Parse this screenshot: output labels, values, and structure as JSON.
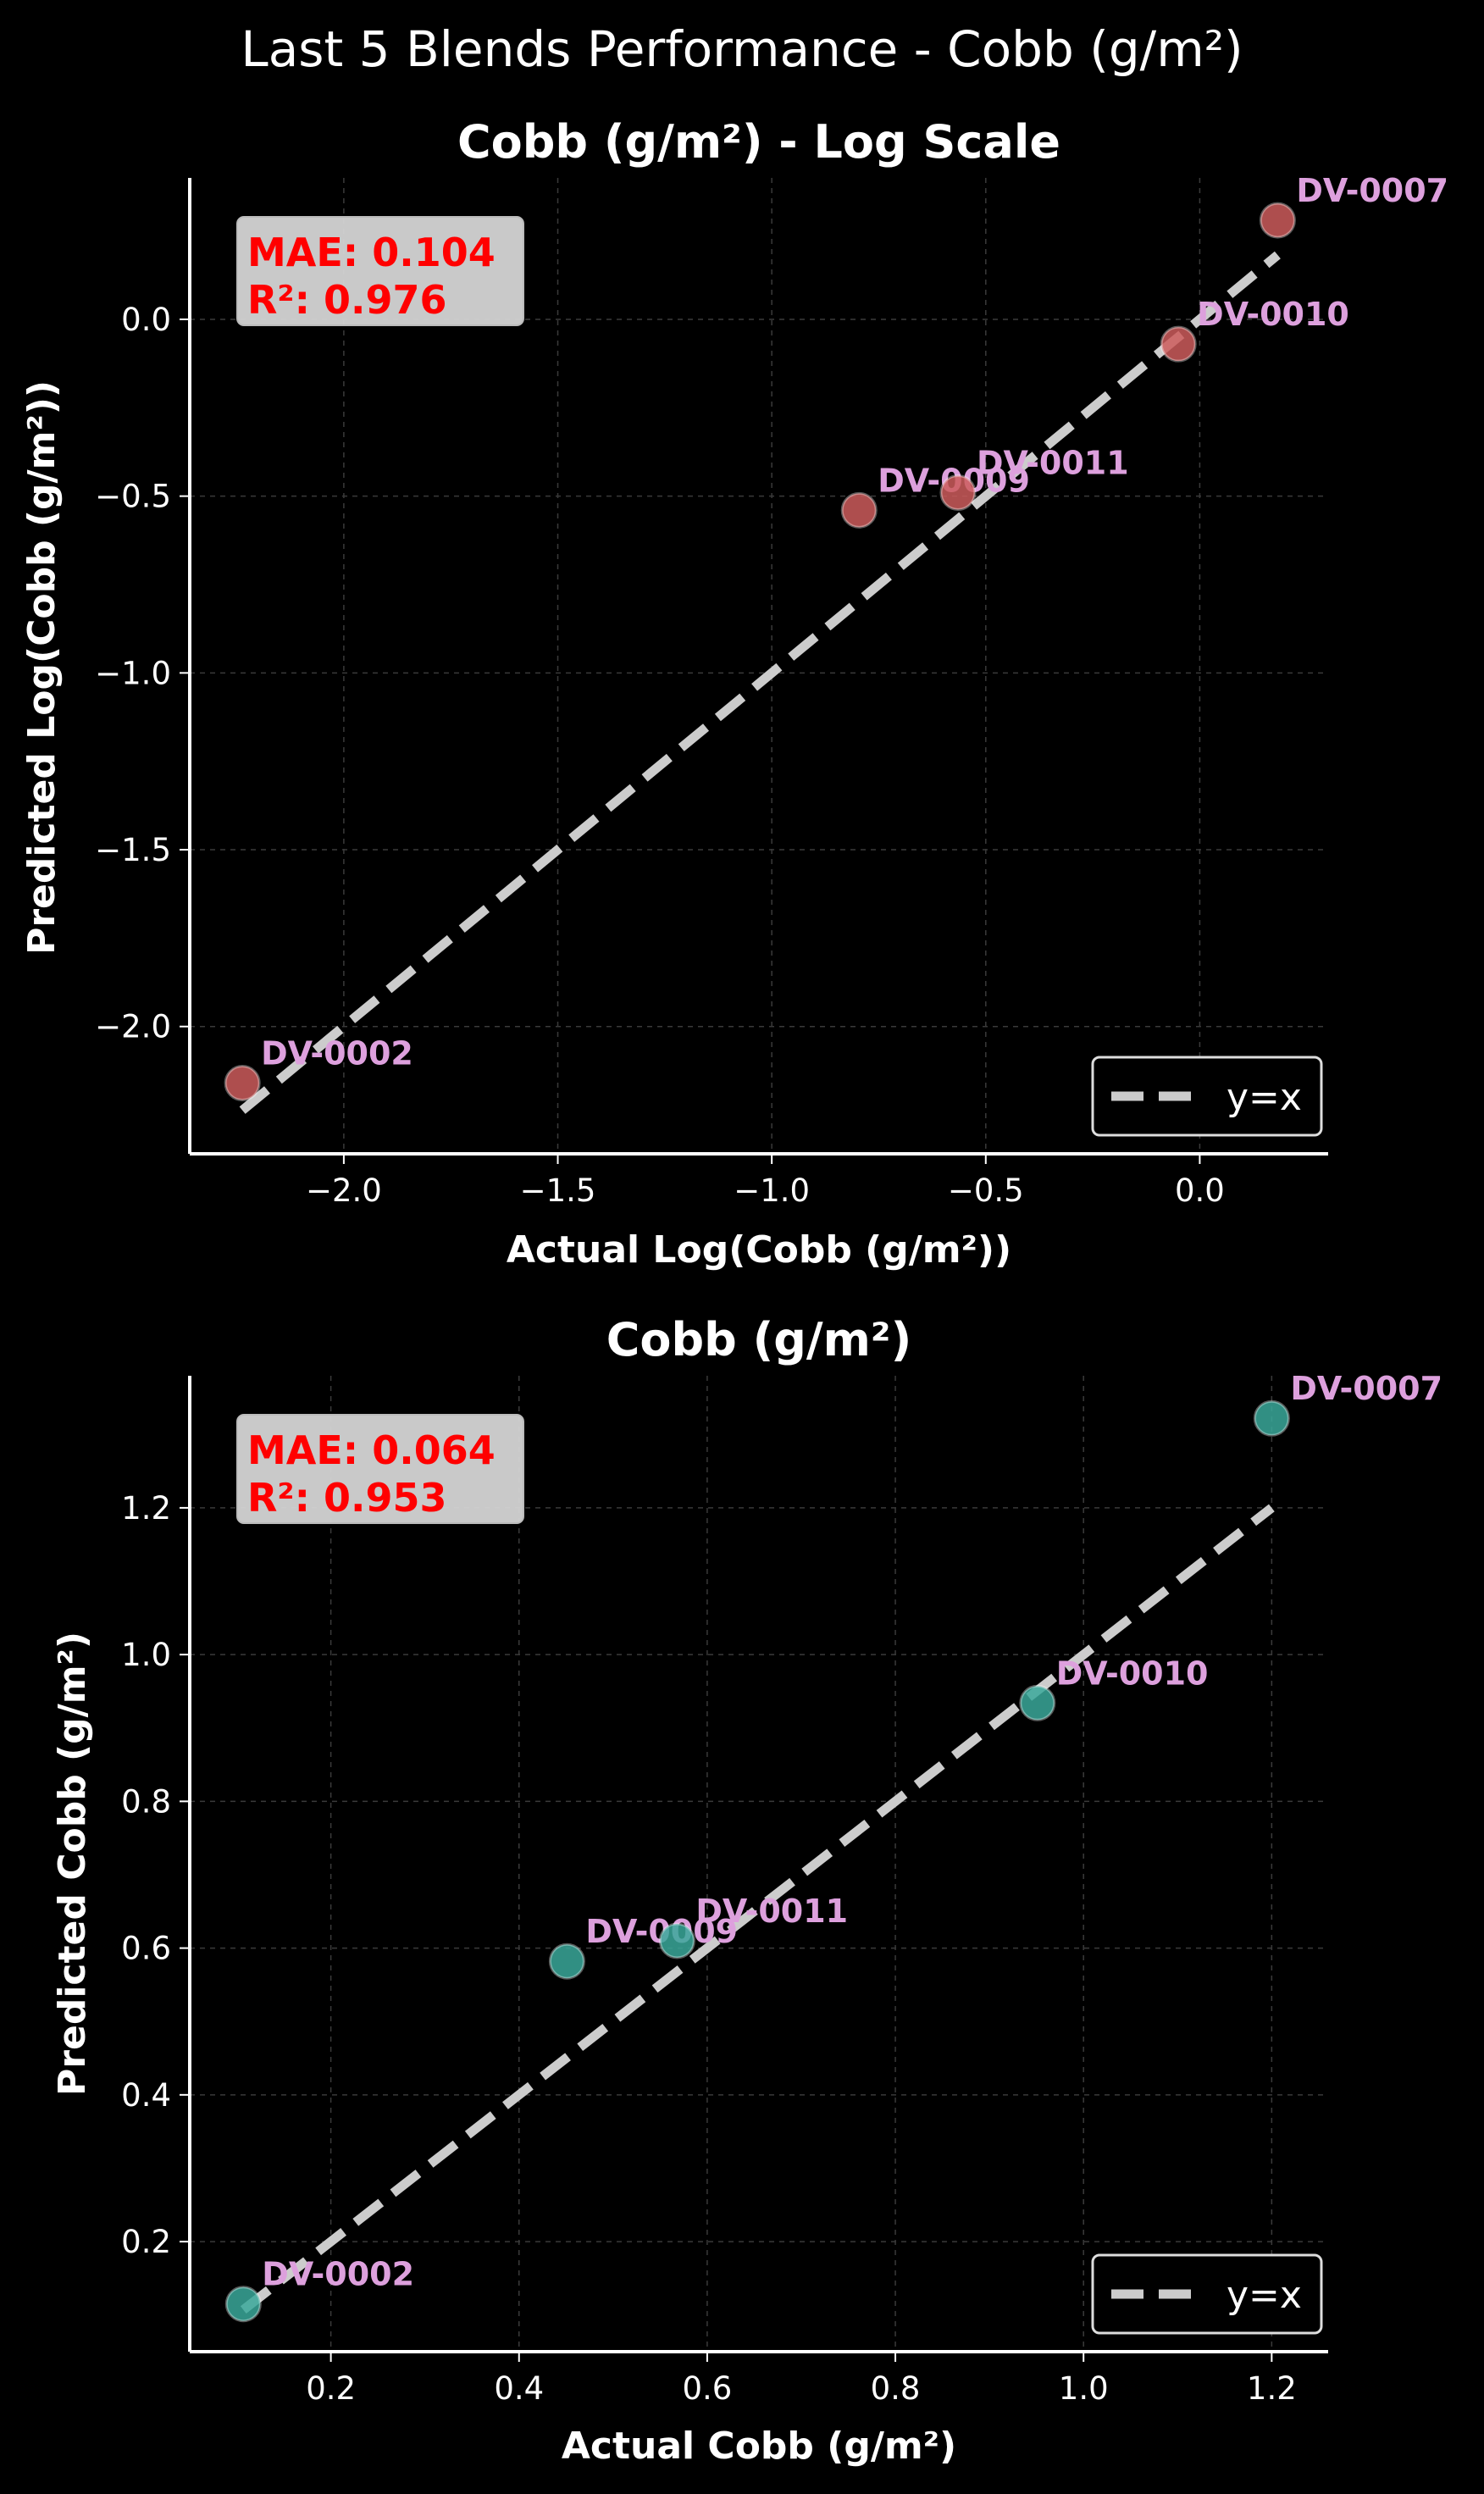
{
  "figure": {
    "title": "Last 5 Blends Performance - Cobb (g/m²)"
  },
  "chart_data": [
    {
      "type": "scatter",
      "title": "Cobb (g/m²) - Log Scale",
      "xlabel": "Actual Log(Cobb (g/m²))",
      "ylabel": "Predicted Log(Cobb (g/m²))",
      "xlim": [
        -2.36,
        0.3
      ],
      "ylim": [
        -2.36,
        0.4
      ],
      "xticks": [
        -2.0,
        -1.5,
        -1.0,
        -0.5,
        0.0
      ],
      "xtick_labels": [
        "−2.0",
        "−1.5",
        "−1.0",
        "−0.5",
        "0.0"
      ],
      "yticks": [
        -2.0,
        -1.5,
        -1.0,
        -0.5,
        0.0
      ],
      "ytick_labels": [
        "−2.0",
        "−1.5",
        "−1.0",
        "−0.5",
        "0.0"
      ],
      "grid": true,
      "marker_color": "#cd5c5c",
      "points": [
        {
          "label": "DV-0002",
          "x": -2.237,
          "y": -2.16
        },
        {
          "label": "DV-0009",
          "x": -0.796,
          "y": -0.54
        },
        {
          "label": "DV-0011",
          "x": -0.565,
          "y": -0.49
        },
        {
          "label": "DV-0010",
          "x": -0.05,
          "y": -0.07
        },
        {
          "label": "DV-0007",
          "x": 0.182,
          "y": 0.28
        }
      ],
      "reference_line": {
        "name": "y=x",
        "from": -2.237,
        "to": 0.182
      },
      "stats": {
        "mae": "MAE: 0.104",
        "r2": "R²: 0.976"
      },
      "legend": {
        "position": "lower-right",
        "entries": [
          "y=x"
        ]
      }
    },
    {
      "type": "scatter",
      "title": "Cobb (g/m²)",
      "xlabel": "Actual Cobb (g/m²)",
      "ylabel": "Predicted Cobb (g/m²)",
      "xlim": [
        0.05,
        1.26
      ],
      "ylim": [
        0.05,
        1.38
      ],
      "xticks": [
        0.2,
        0.4,
        0.6,
        0.8,
        1.0,
        1.2
      ],
      "xtick_labels": [
        "0.2",
        "0.4",
        "0.6",
        "0.8",
        "1.0",
        "1.2"
      ],
      "yticks": [
        0.2,
        0.4,
        0.6,
        0.8,
        1.0,
        1.2
      ],
      "ytick_labels": [
        "0.2",
        "0.4",
        "0.6",
        "0.8",
        "1.0",
        "1.2"
      ],
      "grid": true,
      "marker_color": "#3aa89a",
      "points": [
        {
          "label": "DV-0002",
          "x": 0.107,
          "y": 0.115
        },
        {
          "label": "DV-0009",
          "x": 0.451,
          "y": 0.582
        },
        {
          "label": "DV-0011",
          "x": 0.568,
          "y": 0.61
        },
        {
          "label": "DV-0010",
          "x": 0.951,
          "y": 0.934
        },
        {
          "label": "DV-0007",
          "x": 1.2,
          "y": 1.322
        }
      ],
      "reference_line": {
        "name": "y=x",
        "from": 0.107,
        "to": 1.2
      },
      "stats": {
        "mae": "MAE: 0.064",
        "r2": "R²: 0.953"
      },
      "legend": {
        "position": "lower-right",
        "entries": [
          "y=x"
        ]
      }
    }
  ]
}
